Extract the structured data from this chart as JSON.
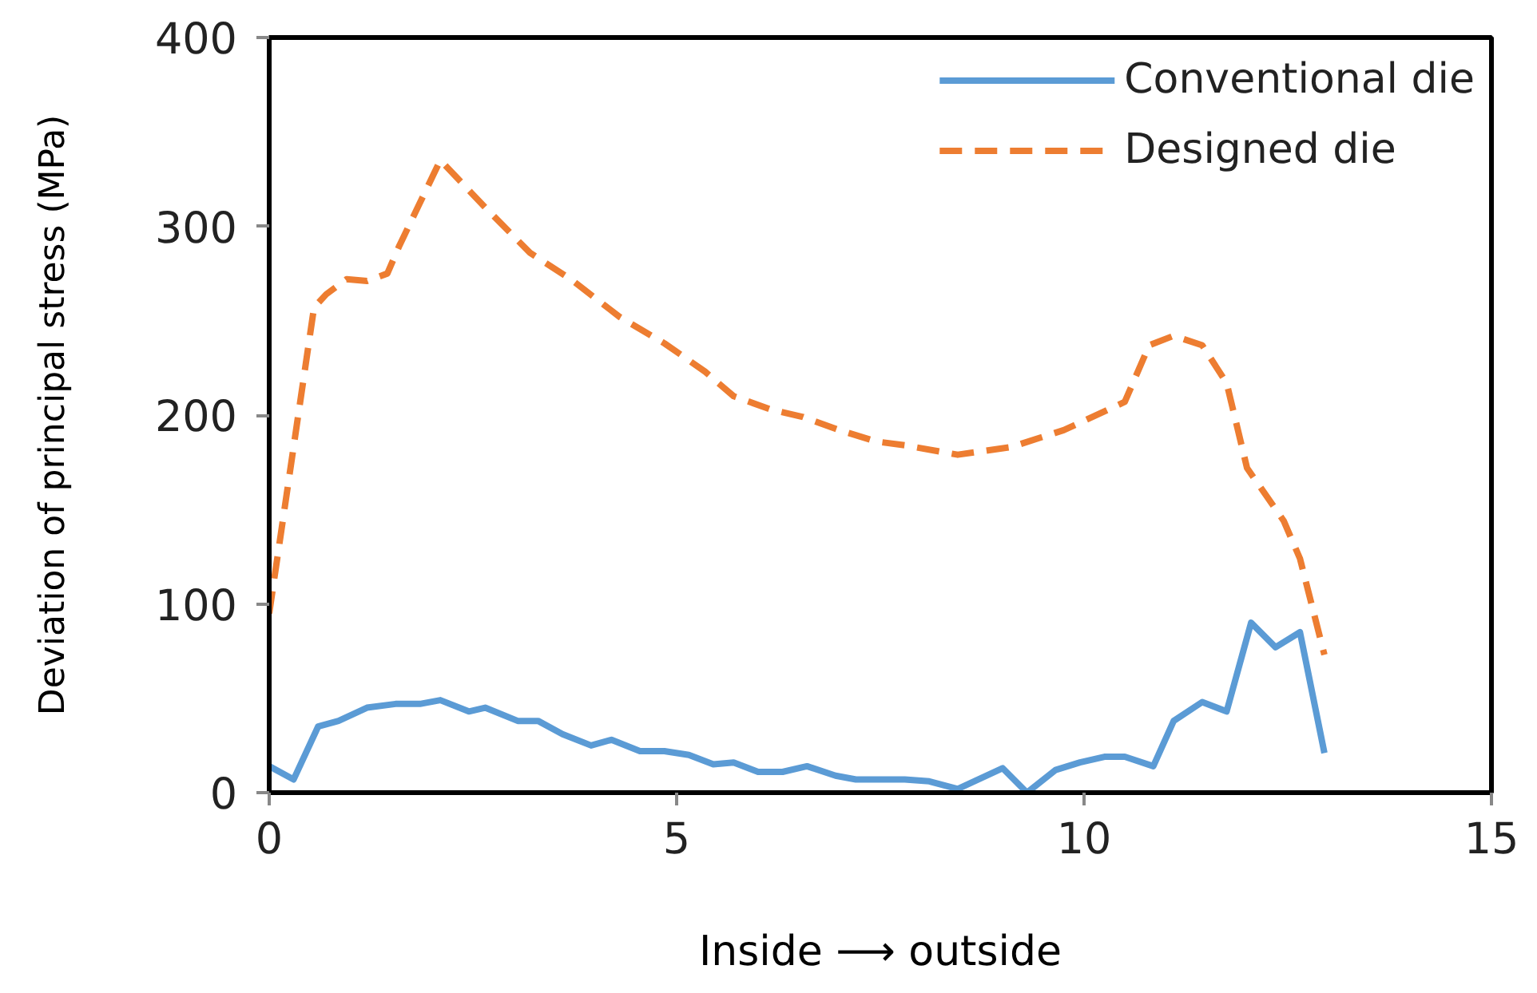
{
  "chart_data": {
    "type": "line",
    "xlabel": "Inside ⟶ outside",
    "ylabel": "Deviation of principal stress (MPa)",
    "xlim": [
      0,
      15
    ],
    "xticks": [
      0,
      5,
      10,
      15
    ],
    "ylim": [
      0,
      400
    ],
    "yticks": [
      0,
      100,
      200,
      300,
      400
    ],
    "legend": "top right",
    "series": [
      {
        "name": "Conventional die",
        "color": "#5b9bd5",
        "line_style": "solid",
        "x": [
          0,
          0.3,
          0.6,
          0.85,
          1.2,
          1.55,
          1.85,
          2.1,
          2.45,
          2.65,
          3.05,
          3.3,
          3.6,
          3.95,
          4.2,
          4.55,
          4.85,
          5.15,
          5.45,
          5.7,
          6.0,
          6.3,
          6.6,
          6.95,
          7.2,
          7.8,
          8.1,
          8.45,
          9.0,
          9.3,
          9.65,
          9.95,
          10.25,
          10.5,
          10.85,
          11.1,
          11.45,
          11.75,
          12.05,
          12.35,
          12.65,
          12.95
        ],
        "values": [
          14,
          7,
          35,
          38,
          45,
          47,
          47,
          49,
          43,
          45,
          38,
          38,
          31,
          25,
          28,
          22,
          22,
          20,
          15,
          16,
          11,
          11,
          14,
          9,
          7,
          7,
          6,
          2,
          13,
          0,
          12,
          16,
          19,
          19,
          14,
          38,
          48,
          43,
          90,
          77,
          85,
          21
        ]
      },
      {
        "name": "Designed die",
        "color": "#ed7d31",
        "line_style": "dashed",
        "x": [
          0,
          0.55,
          0.7,
          0.95,
          1.2,
          1.45,
          1.6,
          2.1,
          2.65,
          3.2,
          3.7,
          4.3,
          4.85,
          5.35,
          5.7,
          6.15,
          6.55,
          7.0,
          7.45,
          7.8,
          8.45,
          9.1,
          9.75,
          10.5,
          10.8,
          11.1,
          11.45,
          11.75,
          12.0,
          12.45,
          12.65,
          12.95
        ],
        "values": [
          95,
          257,
          264,
          272,
          271,
          275,
          290,
          335,
          310,
          286,
          272,
          252,
          238,
          223,
          210,
          203,
          199,
          192,
          186,
          184,
          179,
          183,
          192,
          207,
          237,
          242,
          237,
          217,
          172,
          144,
          124,
          73
        ]
      }
    ]
  }
}
